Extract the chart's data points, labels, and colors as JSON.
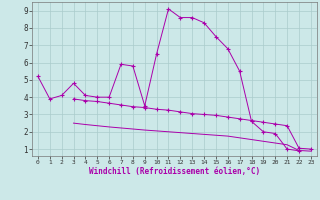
{
  "xlabel": "Windchill (Refroidissement éolien,°C)",
  "background_color": "#cce8e8",
  "line_color": "#aa00aa",
  "grid_color": "#aacccc",
  "x_ticks": [
    0,
    1,
    2,
    3,
    4,
    5,
    6,
    7,
    8,
    9,
    10,
    11,
    12,
    13,
    14,
    15,
    16,
    17,
    18,
    19,
    20,
    21,
    22,
    23
  ],
  "y_ticks": [
    1,
    2,
    3,
    4,
    5,
    6,
    7,
    8,
    9
  ],
  "ylim": [
    0.6,
    9.5
  ],
  "xlim": [
    -0.5,
    23.5
  ],
  "series1_y": [
    5.2,
    3.9,
    4.1,
    4.8,
    4.1,
    4.0,
    4.0,
    5.9,
    5.8,
    3.5,
    6.5,
    9.1,
    8.6,
    8.6,
    8.3,
    7.5,
    6.8,
    5.5,
    2.6,
    2.0,
    1.9,
    1.0,
    0.9,
    null
  ],
  "series2_y": [
    null,
    null,
    null,
    3.9,
    3.8,
    3.75,
    3.65,
    3.55,
    3.45,
    3.4,
    3.3,
    3.25,
    3.15,
    3.05,
    3.0,
    2.95,
    2.85,
    2.75,
    2.65,
    2.55,
    2.45,
    2.35,
    1.05,
    1.0
  ],
  "series3_y": [
    null,
    null,
    null,
    2.5,
    2.42,
    2.35,
    2.28,
    2.22,
    2.16,
    2.1,
    2.05,
    2.0,
    1.95,
    1.9,
    1.85,
    1.8,
    1.75,
    1.65,
    1.55,
    1.45,
    1.35,
    1.25,
    0.92,
    0.88
  ]
}
